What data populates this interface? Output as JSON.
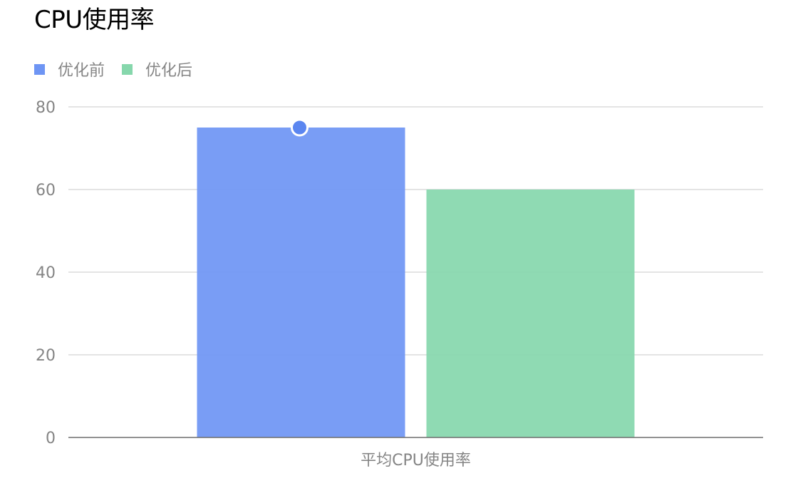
{
  "chart_data": {
    "type": "bar",
    "title": "CPU使用率",
    "categories": [
      "平均CPU使用率"
    ],
    "series": [
      {
        "name": "优化前",
        "values": [
          75
        ],
        "color": "#6e95f4"
      },
      {
        "name": "优化后",
        "values": [
          60
        ],
        "color": "#86d7ac"
      }
    ],
    "ylim": [
      0,
      80
    ],
    "yticks": [
      0,
      20,
      40,
      60,
      80
    ],
    "grid": true,
    "legend_position": "top-left",
    "highlighted_point": {
      "series": "优化前",
      "category": "平均CPU使用率",
      "value": 75
    }
  }
}
